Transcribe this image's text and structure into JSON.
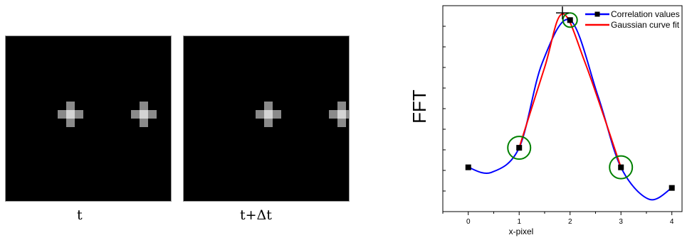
{
  "frames": [
    {
      "label": "t"
    },
    {
      "label": "t+Δt"
    }
  ],
  "chart_data": {
    "type": "line",
    "ylabel": "FFT",
    "xlabel": "x-pixel",
    "xlim": [
      -0.5,
      4.2
    ],
    "ylim": [
      0,
      1
    ],
    "xticks": [
      0,
      1,
      2,
      3,
      4
    ],
    "yaxis_tick_labels": false,
    "legend_position": "top-right",
    "series": [
      {
        "name": "Correlation values",
        "color": "#0000ff",
        "marker": "square",
        "x": [
          0,
          1,
          2,
          3,
          4
        ],
        "y": [
          0.215,
          0.31,
          0.93,
          0.215,
          0.115
        ]
      },
      {
        "name": "Gaussian curve fit",
        "color": "#ff0000",
        "x": [
          1,
          1.5,
          1.85,
          2.3,
          3
        ],
        "y": [
          0.31,
          0.7,
          0.96,
          0.72,
          0.215
        ]
      }
    ],
    "annotations": {
      "circles_at_x": [
        1,
        2,
        3
      ],
      "circle_color": "#008000",
      "peak_cross": {
        "x": 1.85,
        "y": 0.965
      }
    }
  }
}
